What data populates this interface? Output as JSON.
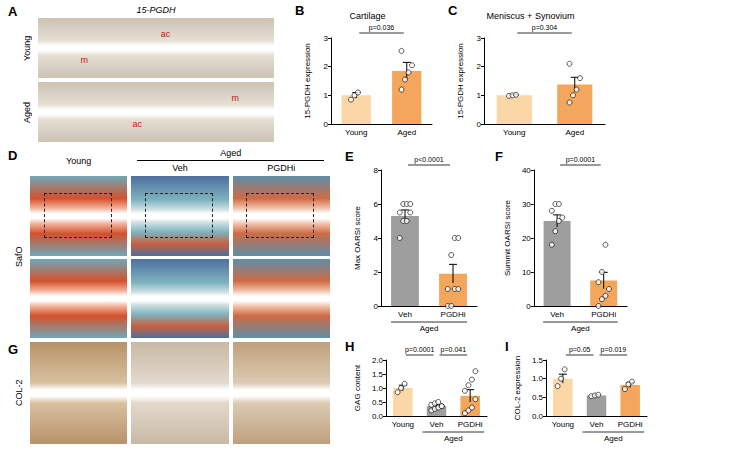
{
  "image_panels": [
    {
      "panel": "A",
      "title": "15-PGDH",
      "rows": [
        {
          "label": "Young",
          "marks": [
            "m",
            "ac"
          ]
        },
        {
          "label": "Aged",
          "marks": [
            "ac",
            "m"
          ]
        }
      ]
    },
    {
      "panel": "D",
      "stain": "SafO",
      "columns": [
        "Young",
        "Veh",
        "PGDHi"
      ],
      "group": {
        "label": "Aged",
        "columns": [
          "Veh",
          "PGDHi"
        ]
      }
    },
    {
      "panel": "G",
      "stain": "COL-2"
    }
  ],
  "chart_data": [
    {
      "panel": "B",
      "type": "bar",
      "title": "Cartilage",
      "y_label": "15-PGDH expression",
      "categories": [
        "Young",
        "Aged"
      ],
      "values": [
        1.0,
        1.85
      ],
      "errors": [
        0.1,
        0.3
      ],
      "points": [
        [
          0.85,
          1.0,
          1.1
        ],
        [
          1.2,
          1.55,
          1.8,
          2.05,
          2.55
        ]
      ],
      "colors": [
        "#fbd6a6",
        "#f3a65c"
      ],
      "ylim": [
        0,
        3
      ],
      "yticks": [
        0,
        1,
        2,
        3
      ],
      "grid": false,
      "annotations": [
        {
          "text": "p=0.036",
          "between": [
            "Young",
            "Aged"
          ]
        }
      ]
    },
    {
      "panel": "C",
      "type": "bar",
      "title": "Meniscus + Synovium",
      "y_label": "15-PGDH expression",
      "categories": [
        "Young",
        "Aged"
      ],
      "values": [
        1.0,
        1.38
      ],
      "errors": [
        0.03,
        0.25
      ],
      "points": [
        [
          0.98,
          1.0,
          1.02
        ],
        [
          0.75,
          1.0,
          1.2,
          1.6,
          2.1
        ]
      ],
      "colors": [
        "#fbd6a6",
        "#f3a65c"
      ],
      "ylim": [
        0,
        3
      ],
      "yticks": [
        0,
        1,
        2,
        3
      ],
      "grid": false,
      "annotations": [
        {
          "text": "p=0.304",
          "between": [
            "Young",
            "Aged"
          ]
        }
      ]
    },
    {
      "panel": "E",
      "type": "bar",
      "y_label": "Max OARSI score",
      "categories": [
        "Veh",
        "PGDHi"
      ],
      "group_label": {
        "text": "Aged",
        "categories": [
          "Veh",
          "PGDHi"
        ]
      },
      "values": [
        5.3,
        1.9
      ],
      "errors": [
        0.35,
        0.55
      ],
      "points": [
        [
          4,
          5,
          5,
          5.5,
          5.5,
          6,
          6,
          6
        ],
        [
          0,
          0,
          1,
          1,
          1,
          3,
          4,
          4
        ]
      ],
      "colors": [
        "#9e9e9e",
        "#f3a65c"
      ],
      "ylim": [
        0,
        8
      ],
      "yticks": [
        0,
        2,
        4,
        6,
        8
      ],
      "grid": false,
      "annotations": [
        {
          "text": "p<0.0001",
          "between": [
            "Veh",
            "PGDHi"
          ]
        }
      ]
    },
    {
      "panel": "F",
      "type": "bar",
      "y_label": "Summit OARSI score",
      "categories": [
        "Veh",
        "PGDHi"
      ],
      "group_label": {
        "text": "Aged",
        "categories": [
          "Veh",
          "PGDHi"
        ]
      },
      "values": [
        25,
        7.5
      ],
      "errors": [
        1.8,
        2.4
      ],
      "points": [
        [
          18,
          22,
          25,
          26,
          28,
          30,
          30
        ],
        [
          0,
          2,
          3,
          5,
          7,
          10,
          18
        ]
      ],
      "colors": [
        "#9e9e9e",
        "#f3a65c"
      ],
      "ylim": [
        0,
        40
      ],
      "yticks": [
        0,
        10,
        20,
        30,
        40
      ],
      "grid": false,
      "annotations": [
        {
          "text": "p=0.0001",
          "between": [
            "Veh",
            "PGDHi"
          ]
        }
      ]
    },
    {
      "panel": "H",
      "type": "bar",
      "y_label": "GAG content",
      "categories": [
        "Young",
        "Veh",
        "PGDHi"
      ],
      "group_label": {
        "text": "Aged",
        "categories": [
          "Veh",
          "PGDHi"
        ]
      },
      "values": [
        1.0,
        0.35,
        0.72
      ],
      "errors": [
        0.1,
        0.06,
        0.22
      ],
      "points": [
        [
          0.85,
          1.0,
          1.15
        ],
        [
          0.2,
          0.25,
          0.3,
          0.35,
          0.4,
          0.45,
          0.5,
          0.35
        ],
        [
          0.1,
          0.2,
          0.3,
          0.6,
          0.9,
          1.1,
          1.3,
          1.6
        ]
      ],
      "colors": [
        "#fbd6a6",
        "#9e9e9e",
        "#f3a65c"
      ],
      "ylim": [
        0,
        2
      ],
      "yticks": [
        {
          "value": 0,
          "label": "0.0"
        },
        {
          "value": 0.5,
          "label": "0.5"
        },
        {
          "value": 1,
          "label": "1.0"
        },
        {
          "value": 1.5,
          "label": "1.5"
        },
        {
          "value": 2,
          "label": "2.0"
        }
      ],
      "grid": false,
      "annotations": [
        {
          "text": "p=0.0001",
          "between": [
            "Young",
            "Veh"
          ]
        },
        {
          "text": "p=0.041",
          "between": [
            "Veh",
            "PGDHi"
          ]
        }
      ]
    },
    {
      "panel": "I",
      "type": "bar",
      "y_label": "COL-2 expression",
      "categories": [
        "Young",
        "Veh",
        "PGDHi"
      ],
      "group_label": {
        "text": "Aged",
        "categories": [
          "Veh",
          "PGDHi"
        ]
      },
      "values": [
        1.0,
        0.55,
        0.83
      ],
      "errors": [
        0.12,
        0.02,
        0.07
      ],
      "points": [
        [
          0.8,
          1.0,
          1.25
        ],
        [
          0.53,
          0.55,
          0.57
        ],
        [
          0.72,
          0.85,
          0.92
        ]
      ],
      "colors": [
        "#fbd6a6",
        "#9e9e9e",
        "#f3a65c"
      ],
      "ylim": [
        0,
        1.5
      ],
      "yticks": [
        {
          "value": 0,
          "label": "0.0"
        },
        {
          "value": 0.5,
          "label": "0.5"
        },
        {
          "value": 1,
          "label": "1.0"
        },
        {
          "value": 1.5,
          "label": "1.5"
        }
      ],
      "grid": false,
      "annotations": [
        {
          "text": "p=0.05",
          "between": [
            "Young",
            "Veh"
          ]
        },
        {
          "text": "p=0.019",
          "between": [
            "Veh",
            "PGDHi"
          ]
        }
      ]
    }
  ]
}
